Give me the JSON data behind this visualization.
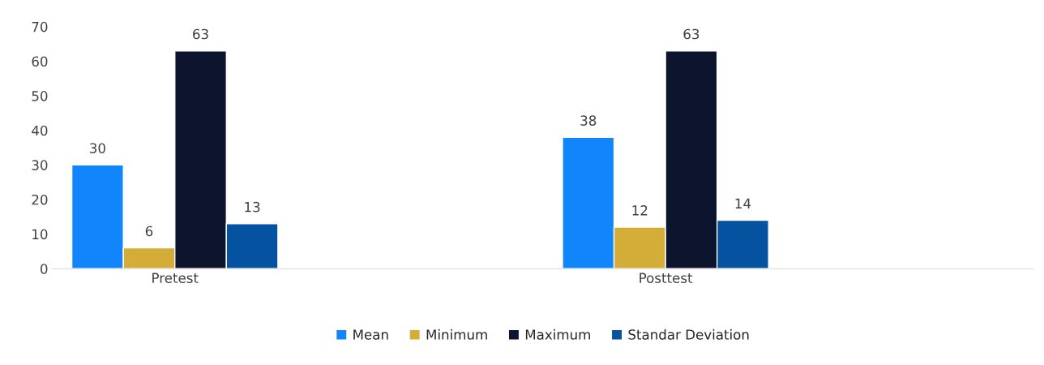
{
  "chart_data": {
    "type": "bar",
    "categories": [
      "Pretest",
      null,
      "Posttest",
      null
    ],
    "series": [
      {
        "name": "Mean",
        "color": "#1185fb",
        "values": [
          30,
          null,
          38,
          null
        ]
      },
      {
        "name": "Minimum",
        "color": "#d3ad38",
        "values": [
          6,
          null,
          12,
          null
        ]
      },
      {
        "name": "Maximum",
        "color": "#0c142e",
        "values": [
          63,
          null,
          63,
          null
        ]
      },
      {
        "name": "Standar Deviation",
        "color": "#0452a0",
        "values": [
          13,
          null,
          14,
          null
        ]
      }
    ],
    "ylim": [
      0,
      70
    ],
    "yticks": [
      0,
      10,
      20,
      30,
      40,
      50,
      60,
      70
    ],
    "data_labels": true,
    "grid": false,
    "legend": "bottom"
  }
}
